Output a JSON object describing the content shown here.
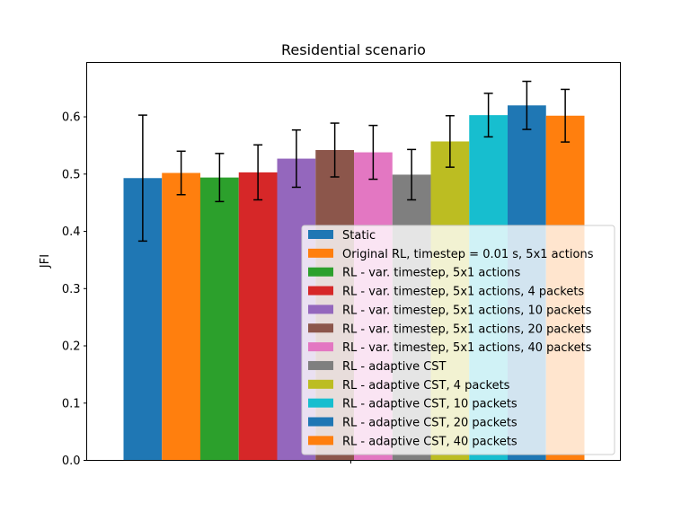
{
  "chart_data": {
    "type": "bar",
    "title": "Residential scenario",
    "xlabel": "",
    "ylabel": "JFI",
    "ylim": [
      0,
      0.695
    ],
    "yticks": [
      0.0,
      0.1,
      0.2,
      0.3,
      0.4,
      0.5,
      0.6
    ],
    "ytick_labels": [
      "0.0",
      "0.1",
      "0.2",
      "0.3",
      "0.4",
      "0.5",
      "0.6"
    ],
    "categories": [
      ""
    ],
    "legend_position": "lower-right",
    "grid": false,
    "series": [
      {
        "name": "Static",
        "value": 0.493,
        "error": 0.11,
        "color": "#1f77b4"
      },
      {
        "name": "Original RL, timestep = 0.01 s, 5x1 actions",
        "value": 0.502,
        "error": 0.038,
        "color": "#ff7f0e"
      },
      {
        "name": "RL - var. timestep, 5x1 actions",
        "value": 0.494,
        "error": 0.042,
        "color": "#2ca02c"
      },
      {
        "name": "RL - var. timestep, 5x1 actions, 4 packets",
        "value": 0.503,
        "error": 0.048,
        "color": "#d62728"
      },
      {
        "name": "RL - var. timestep, 5x1 actions, 10 packets",
        "value": 0.527,
        "error": 0.05,
        "color": "#9467bd"
      },
      {
        "name": "RL - var. timestep, 5x1 actions, 20 packets",
        "value": 0.542,
        "error": 0.047,
        "color": "#8c564b"
      },
      {
        "name": "RL - var. timestep, 5x1 actions, 40 packets",
        "value": 0.538,
        "error": 0.047,
        "color": "#e377c2"
      },
      {
        "name": "RL - adaptive CST",
        "value": 0.499,
        "error": 0.044,
        "color": "#7f7f7f"
      },
      {
        "name": "RL - adaptive CST, 4 packets",
        "value": 0.557,
        "error": 0.045,
        "color": "#bcbd22"
      },
      {
        "name": "RL - adaptive CST, 10 packets",
        "value": 0.603,
        "error": 0.038,
        "color": "#17becf"
      },
      {
        "name": "RL - adaptive CST, 20 packets",
        "value": 0.62,
        "error": 0.042,
        "color": "#1f77b4"
      },
      {
        "name": "RL - adaptive CST, 40 packets",
        "value": 0.602,
        "error": 0.046,
        "color": "#ff7f0e"
      }
    ]
  }
}
